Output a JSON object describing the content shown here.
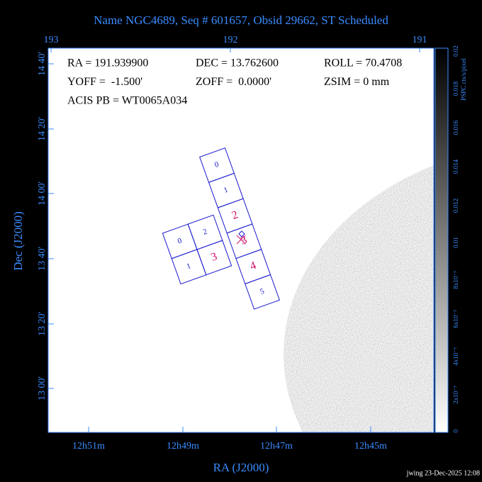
{
  "header": {
    "title": "Name NGC4689, Seq # 601657, Obsid 29662, ST Scheduled"
  },
  "info": {
    "lines": [
      [
        "RA = 191.939900",
        "DEC = 13.762600",
        "ROLL = 70.4708"
      ],
      [
        "YOFF =  -1.500'",
        "ZOFF =  0.0000'",
        "ZSIM = 0 mm"
      ],
      [
        "ACIS PB = WT0065A034"
      ]
    ]
  },
  "axes": {
    "top_labels": [
      "193",
      "192",
      "191"
    ],
    "left_labels": [
      "14 40'",
      "14 20'",
      "14 00'",
      "13 40'",
      "13 20'",
      "13 00'"
    ],
    "bottom_labels": [
      "12h51m",
      "12h49m",
      "12h47m",
      "12h45m"
    ],
    "x_title": "RA (J2000)",
    "y_title": "Dec (J2000)"
  },
  "colorbar": {
    "title": "PSPC cts/s/pixel",
    "labels": [
      "0.02",
      "0.018",
      "0.016",
      "0.014",
      "0.012",
      "0.01",
      "8x10⁻³",
      "6x10⁻³",
      "4x10⁻³",
      "2x10⁻³",
      "0"
    ]
  },
  "acis_s": {
    "chips": [
      "0",
      "1",
      "2",
      "3",
      "4",
      "5"
    ]
  },
  "acis_i": {
    "chips": [
      "0",
      "2",
      "1",
      "3"
    ]
  },
  "footer": {
    "stamp": "jwing 23-Dec-2025 12:08"
  }
}
